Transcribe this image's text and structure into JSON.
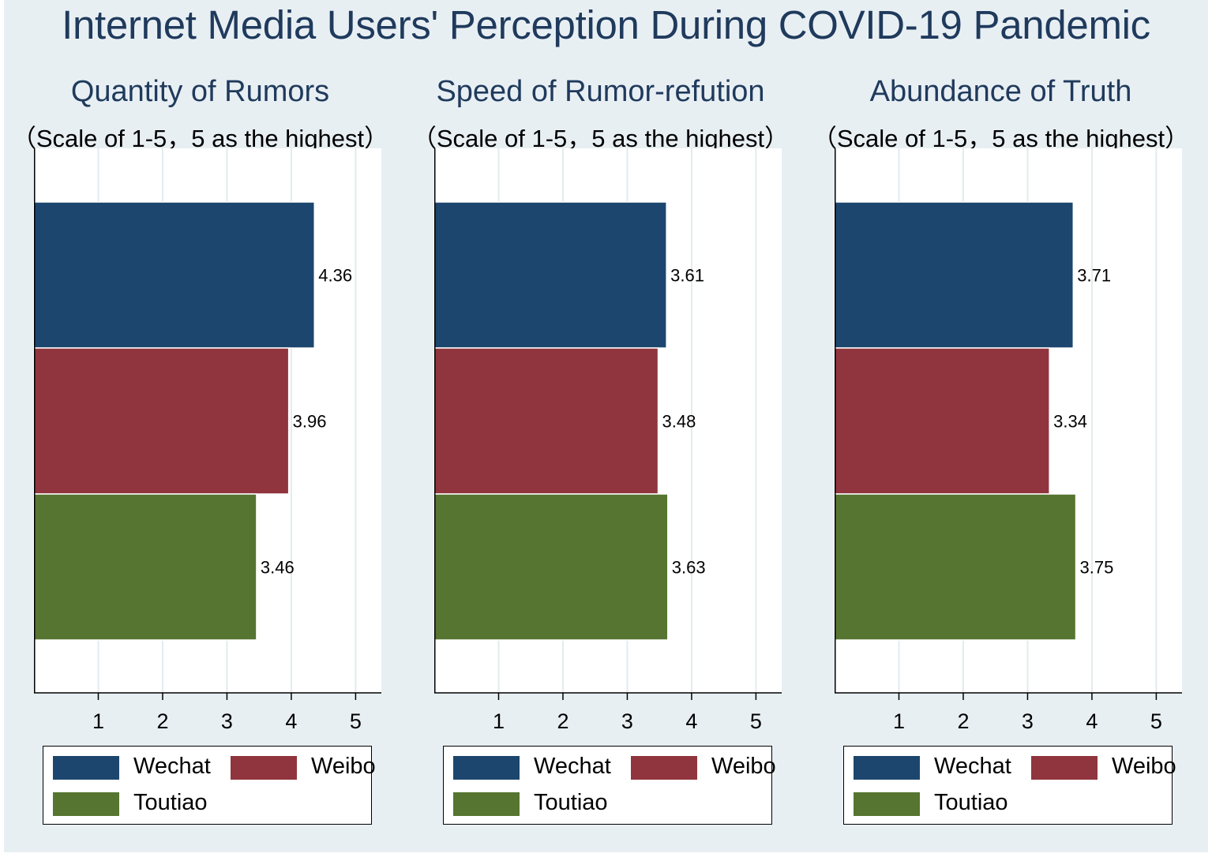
{
  "title": "Internet Media Users' Perception During COVID-19 Pandemic",
  "colors": {
    "Wechat": "#1c466e",
    "Weibo": "#90353d",
    "Toutiao": "#567530"
  },
  "chart_data": [
    {
      "type": "bar",
      "orientation": "horizontal",
      "title": "Quantity of Rumors",
      "subtitle": "（Scale of 1-5，5 as the highest）",
      "categories": [
        "Wechat",
        "Weibo",
        "Toutiao"
      ],
      "values": [
        4.36,
        3.96,
        3.46
      ],
      "value_labels": [
        "4.36",
        "3.96",
        "3.46"
      ],
      "xlim": [
        0,
        5.4
      ],
      "xticks": [
        1,
        2,
        3,
        4,
        5
      ],
      "xtick_labels": [
        "1",
        "2",
        "3",
        "4",
        "5"
      ],
      "legend": [
        "Wechat",
        "Weibo",
        "Toutiao"
      ],
      "grid": true
    },
    {
      "type": "bar",
      "orientation": "horizontal",
      "title": "Speed of Rumor-refution",
      "subtitle": "（Scale of 1-5，5 as the highest）",
      "categories": [
        "Wechat",
        "Weibo",
        "Toutiao"
      ],
      "values": [
        3.61,
        3.48,
        3.63
      ],
      "value_labels": [
        "3.61",
        "3.48",
        "3.63"
      ],
      "xlim": [
        0,
        5.4
      ],
      "xticks": [
        1,
        2,
        3,
        4,
        5
      ],
      "xtick_labels": [
        "1",
        "2",
        "3",
        "4",
        "5"
      ],
      "legend": [
        "Wechat",
        "Weibo",
        "Toutiao"
      ],
      "grid": true
    },
    {
      "type": "bar",
      "orientation": "horizontal",
      "title": "Abundance of Truth",
      "subtitle": "（Scale of 1-5，5 as the highest）",
      "categories": [
        "Wechat",
        "Weibo",
        "Toutiao"
      ],
      "values": [
        3.71,
        3.34,
        3.75
      ],
      "value_labels": [
        "3.71",
        "3.34",
        "3.75"
      ],
      "xlim": [
        0,
        5.4
      ],
      "xticks": [
        1,
        2,
        3,
        4,
        5
      ],
      "xtick_labels": [
        "1",
        "2",
        "3",
        "4",
        "5"
      ],
      "legend": [
        "Wechat",
        "Weibo",
        "Toutiao"
      ],
      "grid": true
    }
  ]
}
